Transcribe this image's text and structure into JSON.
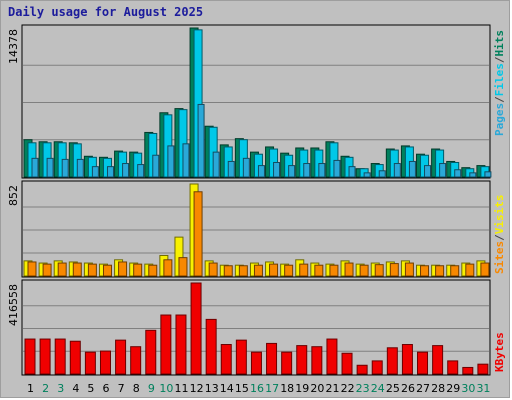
{
  "title": "Daily usage for August 2025",
  "colors": {
    "hits": "#00805c",
    "files": "#00c8e8",
    "pages": "#2aa8d8",
    "visits": "#f8f000",
    "sites": "#f88800",
    "kbytes": "#f00000",
    "weekend_label": "#00805c",
    "weekday_label": "#000000"
  },
  "chart_data": [
    {
      "type": "bar",
      "title": "Daily usage for August 2025",
      "categories": [
        "1",
        "2",
        "3",
        "4",
        "5",
        "6",
        "7",
        "8",
        "9",
        "10",
        "11",
        "12",
        "13",
        "14",
        "15",
        "16",
        "17",
        "18",
        "19",
        "20",
        "21",
        "22",
        "23",
        "24",
        "25",
        "26",
        "27",
        "28",
        "29",
        "30",
        "31"
      ],
      "weekend_days": [
        "2",
        "3",
        "9",
        "10",
        "16",
        "17",
        "23",
        "24",
        "30",
        "31"
      ],
      "ytick": "14378",
      "ylim": [
        0,
        14378
      ],
      "legend": [
        "Pages",
        "/",
        "Files",
        "/",
        "Hits"
      ],
      "series": [
        {
          "name": "Hits",
          "values": [
            3600,
            3400,
            3400,
            3300,
            2000,
            1900,
            2500,
            2400,
            4300,
            6200,
            6600,
            14378,
            4900,
            3100,
            3700,
            2400,
            2900,
            2300,
            2800,
            2800,
            3400,
            2000,
            800,
            1300,
            2700,
            3000,
            2200,
            2700,
            1500,
            900,
            1100
          ]
        },
        {
          "name": "Files",
          "values": [
            3300,
            3300,
            3300,
            3200,
            1900,
            1800,
            2400,
            2300,
            4200,
            6000,
            6500,
            14200,
            4800,
            2900,
            3600,
            2200,
            2700,
            2100,
            2600,
            2600,
            3300,
            1900,
            800,
            1200,
            2600,
            2900,
            2100,
            2600,
            1400,
            800,
            1000
          ]
        },
        {
          "name": "Pages",
          "values": [
            1800,
            1800,
            1700,
            1700,
            1000,
            1000,
            1300,
            1200,
            2100,
            3000,
            3200,
            7000,
            2400,
            1500,
            1800,
            1100,
            1400,
            1100,
            1300,
            1300,
            1600,
            1000,
            400,
            600,
            1300,
            1500,
            1100,
            1300,
            700,
            400,
            500
          ]
        }
      ]
    },
    {
      "type": "bar",
      "categories": [
        "1",
        "2",
        "3",
        "4",
        "5",
        "6",
        "7",
        "8",
        "9",
        "10",
        "11",
        "12",
        "13",
        "14",
        "15",
        "16",
        "17",
        "18",
        "19",
        "20",
        "21",
        "22",
        "23",
        "24",
        "25",
        "26",
        "27",
        "28",
        "29",
        "30",
        "31"
      ],
      "ytick": "852",
      "ylim": [
        0,
        852
      ],
      "legend": [
        "Sites",
        "/",
        "Visits"
      ],
      "series": [
        {
          "name": "Visits",
          "values": [
            140,
            120,
            140,
            130,
            120,
            110,
            150,
            120,
            110,
            190,
            360,
            852,
            140,
            100,
            100,
            120,
            130,
            110,
            150,
            120,
            110,
            140,
            110,
            120,
            130,
            140,
            100,
            100,
            100,
            120,
            140
          ]
        },
        {
          "name": "Sites",
          "values": [
            130,
            110,
            120,
            120,
            110,
            100,
            130,
            110,
            100,
            150,
            170,
            780,
            120,
            95,
            95,
            100,
            110,
            100,
            110,
            100,
            100,
            120,
            100,
            105,
            115,
            120,
            95,
            95,
            95,
            110,
            120
          ]
        }
      ]
    },
    {
      "type": "bar",
      "categories": [
        "1",
        "2",
        "3",
        "4",
        "5",
        "6",
        "7",
        "8",
        "9",
        "10",
        "11",
        "12",
        "13",
        "14",
        "15",
        "16",
        "17",
        "18",
        "19",
        "20",
        "21",
        "22",
        "23",
        "24",
        "25",
        "26",
        "27",
        "28",
        "29",
        "30",
        "31"
      ],
      "ytick": "416558",
      "ylim": [
        0,
        416558
      ],
      "legend": [
        "KBytes"
      ],
      "series": [
        {
          "name": "KBytes",
          "values": [
            160000,
            160000,
            160000,
            150000,
            100000,
            105000,
            155000,
            125000,
            200000,
            270000,
            270000,
            416558,
            250000,
            135000,
            155000,
            100000,
            140000,
            100000,
            130000,
            125000,
            160000,
            95000,
            40000,
            60000,
            120000,
            135000,
            100000,
            130000,
            60000,
            30000,
            45000
          ]
        }
      ]
    }
  ]
}
